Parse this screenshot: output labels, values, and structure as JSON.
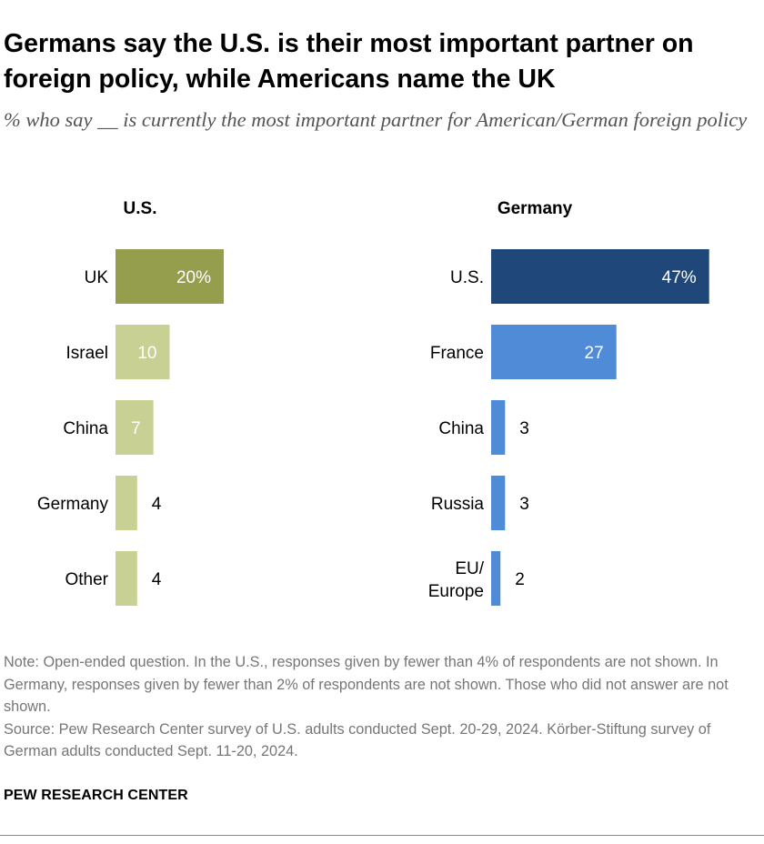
{
  "title": "Germans say the U.S. is their most important partner on foreign policy, while Americans name the UK",
  "subtitle": "% who say __ is currently the most important partner for American/German foreign policy",
  "chart_data": [
    {
      "type": "bar",
      "orientation": "horizontal",
      "panel_title": "U.S.",
      "categories": [
        "UK",
        "Israel",
        "China",
        "Germany",
        "Other"
      ],
      "values": [
        20,
        10,
        7,
        4,
        4
      ],
      "value_labels": [
        "20%",
        "10",
        "7",
        "4",
        "4"
      ],
      "colors": [
        "#949e4c",
        "#c8d193",
        "#c8d193",
        "#c8d193",
        "#c8d193"
      ]
    },
    {
      "type": "bar",
      "orientation": "horizontal",
      "panel_title": "Germany",
      "categories": [
        "U.S.",
        "France",
        "China",
        "Russia",
        "EU/ Europe"
      ],
      "values": [
        47,
        27,
        3,
        3,
        2
      ],
      "value_labels": [
        "47%",
        "27",
        "3",
        "3",
        "2"
      ],
      "colors": [
        "#1f477a",
        "#508bd8",
        "#508bd8",
        "#508bd8",
        "#508bd8"
      ]
    }
  ],
  "note": "Note: Open-ended question. In the U.S., responses given by fewer than 4% of respondents are not shown. In Germany, responses given by fewer than 2% of respondents are not shown. Those who did not answer are not shown.",
  "source": "Source: Pew Research Center survey of U.S. adults conducted Sept. 20-29, 2024. Körber-Stiftung survey of German adults conducted Sept. 11-20, 2024.",
  "brand": "PEW RESEARCH CENTER"
}
